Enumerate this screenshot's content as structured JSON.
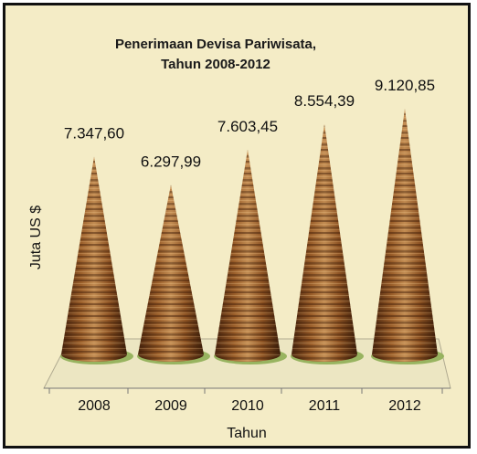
{
  "chart_data": {
    "type": "bar",
    "bar_shape": "cone",
    "title_line1": "Penerimaan Devisa Pariwisata,",
    "title_line2": "Tahun 2008-2012",
    "xlabel": "Tahun",
    "ylabel": "Juta  US $",
    "categories": [
      "2008",
      "2009",
      "2010",
      "2011",
      "2012"
    ],
    "values": [
      7347.6,
      6297.99,
      7603.45,
      8554.39,
      9120.85
    ],
    "value_labels": [
      "7.347,60",
      "6.297,99",
      "7.603,45",
      "8.554,39",
      "9.120,85"
    ],
    "ylim": [
      0,
      9500
    ],
    "grid": false,
    "legend": "none",
    "colors": {
      "background": "#f4ecc6",
      "cone_dark": "#5a2f12",
      "cone_mid": "#a4682f",
      "cone_light": "#d3a26a",
      "floor": "#ece6c2",
      "shadow": "#8fae55"
    }
  }
}
